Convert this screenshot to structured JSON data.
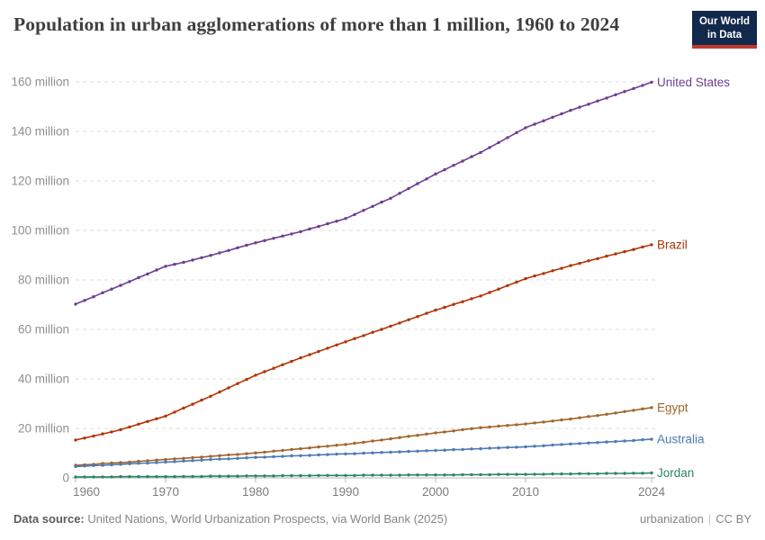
{
  "header": {
    "title": "Population in urban agglomerations of more than 1 million, 1960 to 2024",
    "logo": {
      "line1": "Our World",
      "line2": "in Data",
      "bg_color": "#12294B",
      "bar_color": "#C0392B",
      "text_color": "#ffffff"
    }
  },
  "footer": {
    "source_label": "Data source:",
    "source_text": " United Nations, World Urbanization Prospects, via World Bank (2025)",
    "topic": "urbanization",
    "divider": "|",
    "license": "CC BY"
  },
  "chart_data": {
    "type": "line",
    "title": "Population in urban agglomerations of more than 1 million, 1960 to 2024",
    "xlabel": "",
    "ylabel": "",
    "xlim": [
      1960,
      2024
    ],
    "ylim": [
      0,
      160
    ],
    "grid": "horizontal-dashed",
    "legend_position": "right-of-line-end",
    "x_ticks": [
      {
        "value": 1960,
        "label": "1960"
      },
      {
        "value": 1970,
        "label": "1970"
      },
      {
        "value": 1980,
        "label": "1980"
      },
      {
        "value": 1990,
        "label": "1990"
      },
      {
        "value": 2000,
        "label": "2000"
      },
      {
        "value": 2010,
        "label": "2010"
      },
      {
        "value": 2024,
        "label": "2024"
      }
    ],
    "y_ticks": [
      {
        "value": 0,
        "label": "0"
      },
      {
        "value": 20,
        "label": "20 million"
      },
      {
        "value": 40,
        "label": "40 million"
      },
      {
        "value": 60,
        "label": "60 million"
      },
      {
        "value": 80,
        "label": "80 million"
      },
      {
        "value": 100,
        "label": "100 million"
      },
      {
        "value": 120,
        "label": "120 million"
      },
      {
        "value": 140,
        "label": "140 million"
      },
      {
        "value": 160,
        "label": "160 million"
      }
    ],
    "years": [
      1960,
      1961,
      1962,
      1963,
      1964,
      1965,
      1966,
      1967,
      1968,
      1969,
      1970,
      1971,
      1972,
      1973,
      1974,
      1975,
      1976,
      1977,
      1978,
      1979,
      1980,
      1981,
      1982,
      1983,
      1984,
      1985,
      1986,
      1987,
      1988,
      1989,
      1990,
      1991,
      1992,
      1993,
      1994,
      1995,
      1996,
      1997,
      1998,
      1999,
      2000,
      2001,
      2002,
      2003,
      2004,
      2005,
      2006,
      2007,
      2008,
      2009,
      2010,
      2011,
      2012,
      2013,
      2014,
      2015,
      2016,
      2017,
      2018,
      2019,
      2020,
      2021,
      2022,
      2023,
      2024
    ],
    "series": [
      {
        "name": "United States",
        "color": "#6D3E91",
        "unit": "million",
        "values": [
          70.2,
          71.7,
          73.2,
          74.8,
          76.3,
          77.8,
          79.3,
          80.9,
          82.4,
          84.0,
          85.5,
          86.3,
          87.1,
          88.0,
          89.0,
          89.9,
          90.9,
          91.9,
          93.0,
          94.0,
          95.0,
          95.9,
          96.8,
          97.7,
          98.6,
          99.5,
          100.6,
          101.6,
          102.7,
          103.7,
          104.8,
          106.4,
          108.1,
          109.7,
          111.4,
          113.0,
          115.0,
          116.9,
          118.9,
          120.8,
          122.8,
          124.5,
          126.3,
          128.0,
          129.8,
          131.5,
          133.5,
          135.5,
          137.5,
          139.5,
          141.5,
          142.9,
          144.3,
          145.7,
          147.1,
          148.5,
          149.8,
          151.0,
          152.3,
          153.5,
          154.8,
          156.1,
          157.3,
          158.6,
          159.9
        ]
      },
      {
        "name": "Brazil",
        "color": "#B13507",
        "unit": "million",
        "values": [
          15.3,
          16.1,
          16.9,
          17.8,
          18.6,
          19.5,
          20.6,
          21.7,
          22.8,
          23.9,
          25.0,
          26.6,
          28.2,
          29.8,
          31.4,
          33.0,
          34.7,
          36.4,
          38.1,
          39.8,
          41.5,
          42.9,
          44.3,
          45.7,
          47.1,
          48.5,
          49.8,
          51.1,
          52.4,
          53.7,
          55.0,
          56.3,
          57.5,
          58.8,
          60.0,
          61.3,
          62.6,
          63.9,
          65.2,
          66.5,
          67.8,
          68.9,
          70.1,
          71.2,
          72.4,
          73.5,
          74.9,
          76.3,
          77.7,
          79.1,
          80.5,
          81.6,
          82.6,
          83.7,
          84.7,
          85.8,
          86.7,
          87.7,
          88.6,
          89.6,
          90.5,
          91.4,
          92.3,
          93.3,
          94.2
        ]
      },
      {
        "name": "Egypt",
        "color": "#A2652A",
        "unit": "million",
        "values": [
          5.1,
          5.3,
          5.5,
          5.8,
          6.0,
          6.2,
          6.4,
          6.7,
          6.9,
          7.2,
          7.4,
          7.7,
          7.9,
          8.2,
          8.4,
          8.7,
          9.0,
          9.3,
          9.5,
          9.8,
          10.1,
          10.4,
          10.8,
          11.1,
          11.5,
          11.8,
          12.1,
          12.5,
          12.8,
          13.2,
          13.5,
          14.0,
          14.4,
          14.9,
          15.3,
          15.8,
          16.3,
          16.8,
          17.2,
          17.7,
          18.2,
          18.6,
          19.0,
          19.5,
          19.9,
          20.3,
          20.6,
          20.9,
          21.2,
          21.5,
          21.8,
          22.2,
          22.6,
          23.0,
          23.4,
          23.8,
          24.3,
          24.8,
          25.2,
          25.7,
          26.2,
          26.8,
          27.3,
          27.9,
          28.4
        ]
      },
      {
        "name": "Australia",
        "color": "#4C79B5",
        "unit": "million",
        "values": [
          4.6,
          4.8,
          5.0,
          5.1,
          5.3,
          5.5,
          5.7,
          5.9,
          6.0,
          6.2,
          6.4,
          6.6,
          6.8,
          7.0,
          7.2,
          7.4,
          7.6,
          7.7,
          7.9,
          8.1,
          8.3,
          8.4,
          8.6,
          8.7,
          8.9,
          9.0,
          9.1,
          9.3,
          9.4,
          9.6,
          9.7,
          9.8,
          10.0,
          10.1,
          10.3,
          10.4,
          10.5,
          10.7,
          10.8,
          11.0,
          11.1,
          11.2,
          11.4,
          11.5,
          11.7,
          11.8,
          12.0,
          12.1,
          12.3,
          12.4,
          12.6,
          12.8,
          13.0,
          13.3,
          13.5,
          13.7,
          13.9,
          14.1,
          14.3,
          14.5,
          14.7,
          14.9,
          15.1,
          15.4,
          15.6
        ]
      },
      {
        "name": "Jordan",
        "color": "#2C8465",
        "unit": "million",
        "values": [
          0.4,
          0.4,
          0.4,
          0.4,
          0.4,
          0.5,
          0.5,
          0.5,
          0.5,
          0.5,
          0.5,
          0.5,
          0.6,
          0.6,
          0.6,
          0.7,
          0.7,
          0.7,
          0.7,
          0.8,
          0.8,
          0.8,
          0.8,
          0.9,
          0.9,
          0.9,
          0.9,
          1.0,
          1.0,
          1.0,
          1.0,
          1.0,
          1.1,
          1.1,
          1.1,
          1.1,
          1.1,
          1.2,
          1.2,
          1.2,
          1.2,
          1.2,
          1.2,
          1.3,
          1.3,
          1.3,
          1.3,
          1.4,
          1.4,
          1.4,
          1.4,
          1.5,
          1.5,
          1.6,
          1.6,
          1.6,
          1.7,
          1.7,
          1.7,
          1.8,
          1.8,
          1.8,
          1.9,
          1.9,
          2.0
        ]
      }
    ],
    "style": {
      "grid_color": "#dedede",
      "axis_color": "#b6b6b6",
      "y_tick_label_color": "#8f8f8f",
      "x_tick_label_color": "#7d7d7d",
      "tick_font_size": 13.5,
      "series_label_font_size": 13.5,
      "line_width": 1.6,
      "marker_radius": 1.7
    }
  }
}
